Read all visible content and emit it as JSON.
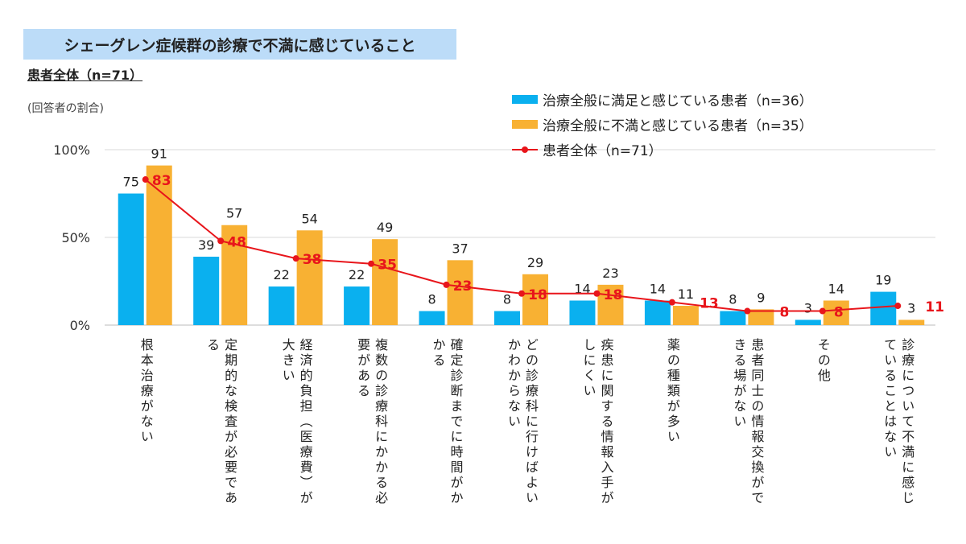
{
  "title": "シェーグレン症候群の診療で不満に感じていること",
  "subtitle": "患者全体（n=71）",
  "unit_label": "(回答者の割合)",
  "chart_data": {
    "type": "bar",
    "categories": [
      "根本治療がない",
      "定期的な検査が必要である",
      "経済的負担（医療費）が大きい",
      "複数の診療科にかかる必要がある",
      "確定診断までに時間がかかる",
      "どの診療科に行けばよいかわからない",
      "疾患に関する情報入手がしにくい",
      "薬の種類が多い",
      "患者同士の情報交換ができる場がない",
      "その他",
      "診療について不満に感じていることはない"
    ],
    "series": [
      {
        "name": "治療全般に満足と感じている患者（n=36）",
        "type": "bar",
        "color": "#0ab0ef",
        "values": [
          75,
          39,
          22,
          22,
          8,
          8,
          14,
          14,
          8,
          3,
          19
        ]
      },
      {
        "name": "治療全般に不満と感じている患者（n=35）",
        "type": "bar",
        "color": "#f8b133",
        "values": [
          91,
          57,
          54,
          49,
          37,
          29,
          23,
          11,
          9,
          14,
          3
        ]
      },
      {
        "name": "患者全体（n=71）",
        "type": "line",
        "color": "#e8151b",
        "values": [
          83,
          48,
          38,
          35,
          23,
          18,
          18,
          13,
          8,
          8,
          11
        ]
      }
    ],
    "yticks": [
      "0%",
      "50%",
      "100%"
    ],
    "ylim": [
      0,
      100
    ],
    "grid": true,
    "legend": "top-right"
  }
}
